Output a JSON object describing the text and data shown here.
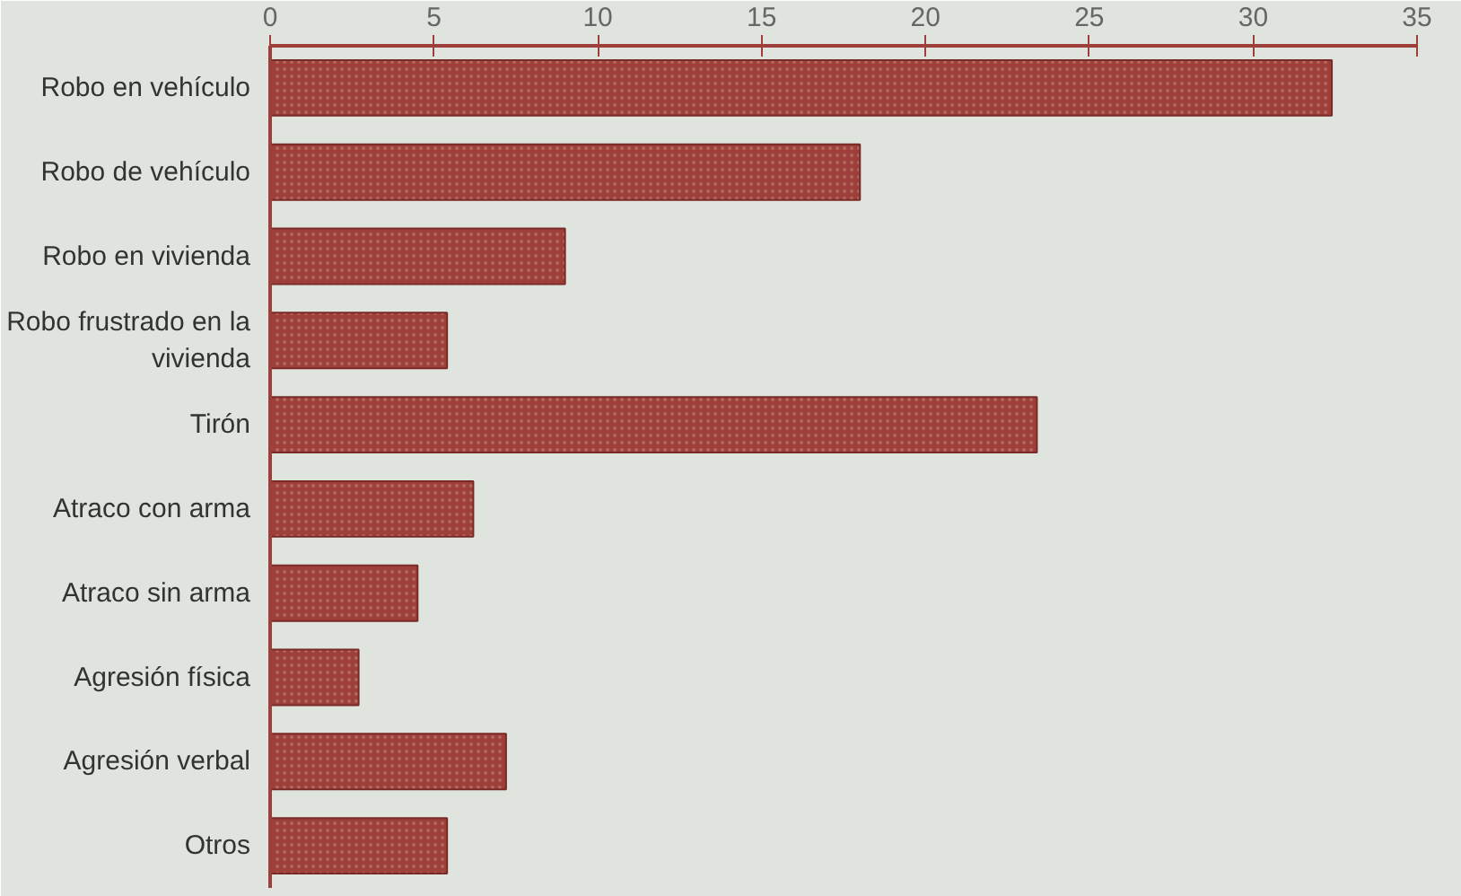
{
  "chart_data": {
    "type": "bar",
    "orientation": "horizontal",
    "categories": [
      "Robo en vehículo",
      "Robo de vehículo",
      "Robo en vivienda",
      "Robo frustrado en la vivienda",
      "Tirón",
      "Atraco con arma",
      "Atraco sin arma",
      "Agresión física",
      "Agresión verbal",
      "Otros"
    ],
    "values": [
      32.4,
      18,
      9,
      5.4,
      23.4,
      6.2,
      4.5,
      2.7,
      7.2,
      5.4
    ],
    "color": "#9e3f39",
    "xlim": [
      0,
      35
    ],
    "xticks": [
      0,
      5,
      10,
      15,
      20,
      25,
      30,
      35
    ],
    "grid": false
  }
}
